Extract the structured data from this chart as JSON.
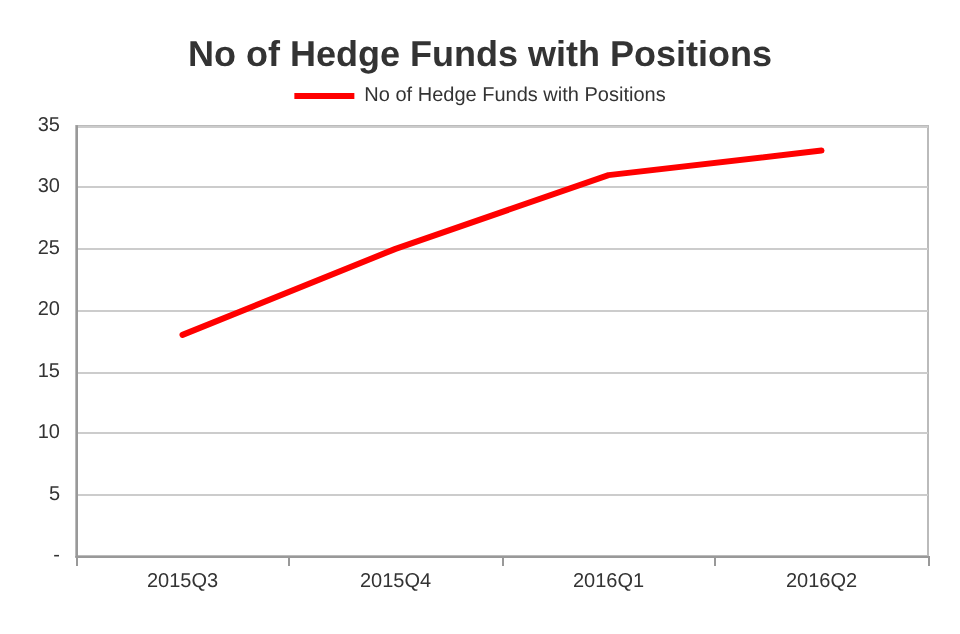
{
  "chart_data": {
    "type": "line",
    "title": "No of Hedge Funds with Positions",
    "categories": [
      "2015Q3",
      "2015Q4",
      "2016Q1",
      "2016Q2"
    ],
    "series": [
      {
        "name": "No of Hedge Funds with Positions",
        "color": "#ff0000",
        "values": [
          18,
          25,
          31,
          33
        ]
      }
    ],
    "ylim": [
      0,
      35
    ],
    "yticks": [
      {
        "value": 0,
        "label": "-"
      },
      5,
      10,
      15,
      20,
      25,
      30,
      35
    ],
    "grid": "y",
    "legend": "top",
    "marker": "none",
    "line_style": "solid"
  }
}
